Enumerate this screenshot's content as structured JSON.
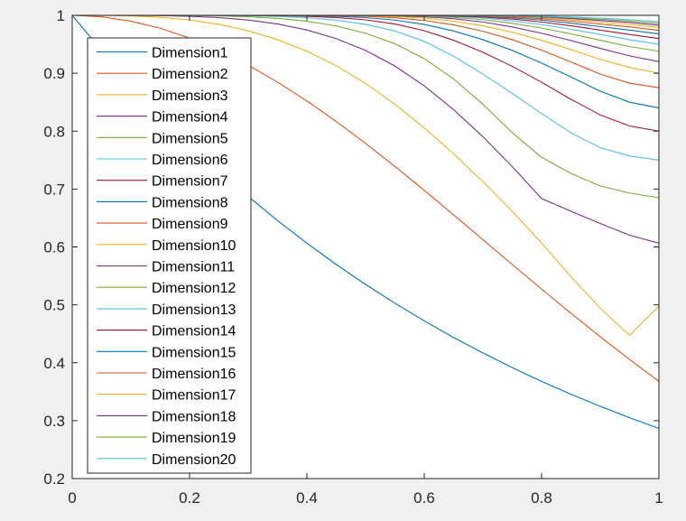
{
  "chart_data": {
    "type": "line",
    "x": [
      0,
      0.05,
      0.1,
      0.15,
      0.2,
      0.25,
      0.3,
      0.35,
      0.4,
      0.45,
      0.5,
      0.55,
      0.6,
      0.65,
      0.7,
      0.75,
      0.8,
      0.85,
      0.9,
      0.95,
      1
    ],
    "xlim": [
      0,
      1
    ],
    "ylim": [
      0.2,
      1
    ],
    "xticks": [
      "0",
      "0.2",
      "0.4",
      "0.6",
      "0.8",
      "1"
    ],
    "yticks": [
      "0.2",
      "0.3",
      "0.4",
      "0.5",
      "0.6",
      "0.7",
      "0.8",
      "0.9",
      "1"
    ],
    "xlabel": "",
    "ylabel": "",
    "title": "",
    "grid": false,
    "legend_location": "northwest",
    "series": [
      {
        "name": "Dimension1",
        "color": "#0072BD",
        "values": [
          1,
          0.9394,
          0.8825,
          0.829,
          0.7788,
          0.7316,
          0.6873,
          0.6456,
          0.6065,
          0.5698,
          0.5353,
          0.5028,
          0.4724,
          0.4437,
          0.4169,
          0.3916,
          0.3679,
          0.3456,
          0.3247,
          0.305,
          0.2865
        ]
      },
      {
        "name": "Dimension2",
        "color": "#D95319",
        "values": [
          1,
          0.9975,
          0.99,
          0.9778,
          0.9608,
          0.9394,
          0.9139,
          0.8847,
          0.8521,
          0.8167,
          0.7788,
          0.739,
          0.6977,
          0.6554,
          0.6126,
          0.5698,
          0.5273,
          0.4855,
          0.4449,
          0.4057,
          0.3679
        ]
      },
      {
        "name": "Dimension3",
        "color": "#EDB120",
        "values": [
          1,
          0.9999,
          0.999,
          0.9966,
          0.992,
          0.9845,
          0.9734,
          0.958,
          0.938,
          0.913,
          0.8825,
          0.8464,
          0.8057,
          0.761,
          0.7127,
          0.6616,
          0.6069,
          0.5488,
          0.4944,
          0.4472,
          0.4977
        ]
      },
      {
        "name": "Dimension4",
        "color": "#7E2F8E",
        "values": [
          1,
          1.0,
          0.9999,
          0.9995,
          0.9984,
          0.9961,
          0.9919,
          0.9851,
          0.9747,
          0.9598,
          0.9394,
          0.9125,
          0.8782,
          0.8372,
          0.7904,
          0.7388,
          0.6836,
          0.6617,
          0.6406,
          0.6203,
          0.6065
        ]
      },
      {
        "name": "Dimension5",
        "color": "#77AC30",
        "values": [
          1,
          1.0,
          1.0,
          0.9999,
          0.9997,
          0.999,
          0.9976,
          0.9948,
          0.9898,
          0.9817,
          0.9692,
          0.951,
          0.9252,
          0.8901,
          0.8465,
          0.7974,
          0.755,
          0.7269,
          0.7054,
          0.693,
          0.685
        ]
      },
      {
        "name": "Dimension6",
        "color": "#4DBEEE",
        "values": [
          1,
          1.0,
          1.0,
          1.0,
          1.0,
          0.9998,
          0.9993,
          0.9982,
          0.9959,
          0.9917,
          0.9845,
          0.973,
          0.9552,
          0.9295,
          0.8985,
          0.8653,
          0.8305,
          0.797,
          0.7715,
          0.757,
          0.75
        ]
      },
      {
        "name": "Dimension7",
        "color": "#A2142F",
        "values": [
          1,
          1.0,
          1.0,
          1.0,
          1.0,
          1.0,
          0.9998,
          0.9994,
          0.9984,
          0.9962,
          0.9922,
          0.9851,
          0.9735,
          0.957,
          0.9363,
          0.912,
          0.8845,
          0.855,
          0.828,
          0.809,
          0.8
        ]
      },
      {
        "name": "Dimension8",
        "color": "#0072BD",
        "values": [
          1,
          1.0,
          1.0,
          1.0,
          1.0,
          1.0,
          1.0,
          0.9998,
          0.9994,
          0.9984,
          0.9961,
          0.9918,
          0.9843,
          0.973,
          0.958,
          0.9395,
          0.9175,
          0.8935,
          0.869,
          0.85,
          0.84
        ]
      },
      {
        "name": "Dimension9",
        "color": "#D95319",
        "values": [
          1,
          1.0,
          1.0,
          1.0,
          1.0,
          1.0,
          1.0,
          0.9999,
          0.9998,
          0.9994,
          0.9983,
          0.9958,
          0.9912,
          0.9836,
          0.9725,
          0.958,
          0.94,
          0.9195,
          0.8985,
          0.883,
          0.875
        ]
      },
      {
        "name": "Dimension10",
        "color": "#EDB120",
        "values": [
          1,
          1.0,
          1.0,
          1.0,
          1.0,
          1.0,
          1.0,
          1.0,
          0.9999,
          0.9998,
          0.9993,
          0.998,
          0.9952,
          0.99,
          0.982,
          0.971,
          0.957,
          0.941,
          0.924,
          0.91,
          0.9
        ]
      },
      {
        "name": "Dimension11",
        "color": "#7E2F8E",
        "values": [
          1,
          1.0,
          1.0,
          1.0,
          1.0,
          1.0,
          1.0,
          1.0,
          1.0,
          0.9999,
          0.9997,
          0.9991,
          0.9975,
          0.9943,
          0.9885,
          0.98,
          0.969,
          0.9565,
          0.943,
          0.93,
          0.92
        ]
      },
      {
        "name": "Dimension12",
        "color": "#77AC30",
        "values": [
          1,
          1.0,
          1.0,
          1.0,
          1.0,
          1.0,
          1.0,
          1.0,
          1.0,
          1.0,
          0.9999,
          0.9996,
          0.9987,
          0.9966,
          0.9926,
          0.9862,
          0.978,
          0.968,
          0.957,
          0.946,
          0.938
        ]
      },
      {
        "name": "Dimension13",
        "color": "#4DBEEE",
        "values": [
          1,
          1.0,
          1.0,
          1.0,
          1.0,
          1.0,
          1.0,
          1.0,
          1.0,
          1.0,
          1.0,
          0.9998,
          0.9993,
          0.998,
          0.9953,
          0.9905,
          0.984,
          0.976,
          0.967,
          0.958,
          0.95
        ]
      },
      {
        "name": "Dimension14",
        "color": "#A2142F",
        "values": [
          1,
          1.0,
          1.0,
          1.0,
          1.0,
          1.0,
          1.0,
          1.0,
          1.0,
          1.0,
          1.0,
          0.9999,
          0.9996,
          0.9988,
          0.997,
          0.9936,
          0.9885,
          0.982,
          0.9745,
          0.967,
          0.96
        ]
      },
      {
        "name": "Dimension15",
        "color": "#0072BD",
        "values": [
          1,
          1.0,
          1.0,
          1.0,
          1.0,
          1.0,
          1.0,
          1.0,
          1.0,
          1.0,
          1.0,
          1.0,
          0.9998,
          0.9993,
          0.9981,
          0.9957,
          0.9918,
          0.9865,
          0.9805,
          0.9745,
          0.968
        ]
      },
      {
        "name": "Dimension16",
        "color": "#D95319",
        "values": [
          1,
          1.0,
          1.0,
          1.0,
          1.0,
          1.0,
          1.0,
          1.0,
          1.0,
          1.0,
          1.0,
          1.0,
          0.9999,
          0.9996,
          0.9988,
          0.9971,
          0.9942,
          0.99,
          0.985,
          0.98,
          0.974
        ]
      },
      {
        "name": "Dimension17",
        "color": "#EDB120",
        "values": [
          1,
          1.0,
          1.0,
          1.0,
          1.0,
          1.0,
          1.0,
          1.0,
          1.0,
          1.0,
          1.0,
          1.0,
          1.0,
          0.9998,
          0.9993,
          0.9981,
          0.9959,
          0.9926,
          0.9885,
          0.9842,
          0.979
        ]
      },
      {
        "name": "Dimension18",
        "color": "#7E2F8E",
        "values": [
          1,
          1.0,
          1.0,
          1.0,
          1.0,
          1.0,
          1.0,
          1.0,
          1.0,
          1.0,
          1.0,
          1.0,
          1.0,
          0.9999,
          0.9996,
          0.9988,
          0.9971,
          0.9945,
          0.9912,
          0.9876,
          0.983
        ]
      },
      {
        "name": "Dimension19",
        "color": "#77AC30",
        "values": [
          1,
          1.0,
          1.0,
          1.0,
          1.0,
          1.0,
          1.0,
          1.0,
          1.0,
          1.0,
          1.0,
          1.0,
          1.0,
          1.0,
          0.9998,
          0.9992,
          0.998,
          0.996,
          0.9933,
          0.9902,
          0.986
        ]
      },
      {
        "name": "Dimension20",
        "color": "#4DBEEE",
        "values": [
          1,
          1.0,
          1.0,
          1.0,
          1.0,
          1.0,
          1.0,
          1.0,
          1.0,
          1.0,
          1.0,
          1.0,
          1.0,
          1.0,
          0.9999,
          0.9995,
          0.9986,
          0.9971,
          0.995,
          0.9925,
          0.989
        ]
      }
    ]
  }
}
